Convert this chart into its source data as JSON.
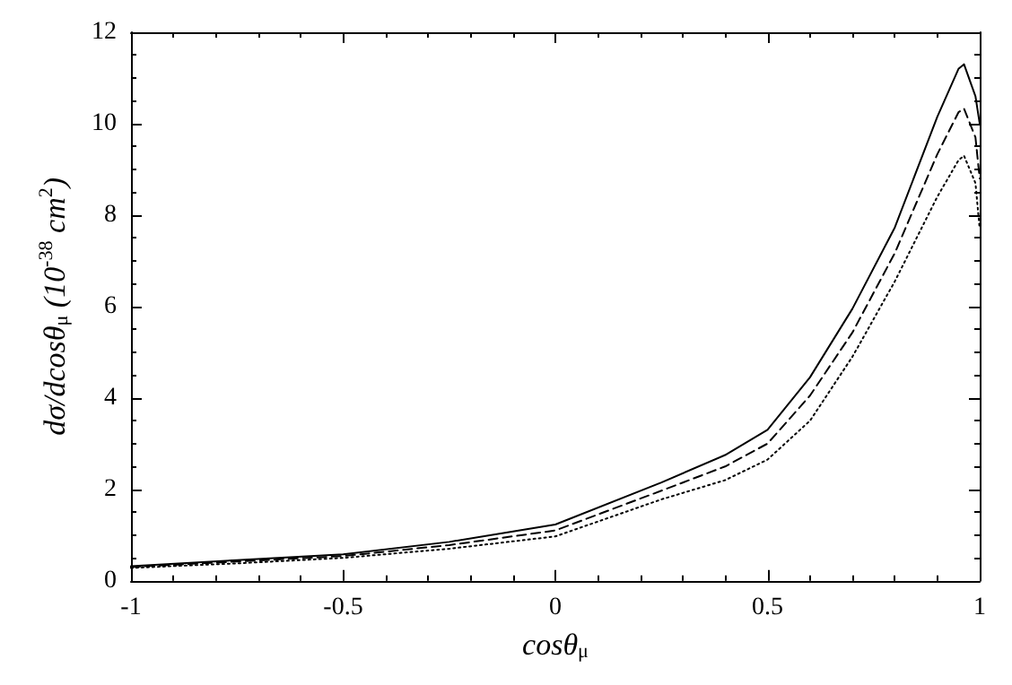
{
  "chart_data": {
    "type": "line",
    "xlabel": "cosθ$_{μ}$",
    "ylabel": "dσ/dcosθ$_{μ}$ (10$^{-38}$ cm$^{2}$)",
    "x": [
      -1,
      -0.75,
      -0.5,
      -0.25,
      0,
      0.25,
      0.4,
      0.5,
      0.6,
      0.7,
      0.8,
      0.9,
      0.95,
      0.963,
      0.99,
      1
    ],
    "series": [
      {
        "color": "#000000",
        "line_style": "solid",
        "values": [
          0.32,
          0.45,
          0.58,
          0.85,
          1.23,
          2.15,
          2.75,
          3.3,
          4.45,
          5.95,
          7.73,
          10.15,
          11.2,
          11.3,
          10.6,
          10.0
        ]
      },
      {
        "color": "#000000",
        "line_style": "dashed",
        "values": [
          0.3,
          0.42,
          0.54,
          0.78,
          1.1,
          1.97,
          2.5,
          3.0,
          4.05,
          5.43,
          7.17,
          9.33,
          10.25,
          10.33,
          9.7,
          8.8
        ]
      },
      {
        "color": "#000000",
        "line_style": "dotted",
        "values": [
          0.28,
          0.38,
          0.5,
          0.7,
          0.97,
          1.78,
          2.2,
          2.65,
          3.5,
          4.9,
          6.55,
          8.4,
          9.2,
          9.3,
          8.7,
          7.7
        ]
      }
    ],
    "xlim": [
      -1,
      1
    ],
    "xticks": [
      -1,
      -0.5,
      0,
      0.5,
      1
    ],
    "ylim": [
      0,
      12
    ],
    "yticks": [
      0,
      2,
      4,
      6,
      8,
      10,
      12
    ],
    "grid": false,
    "marker": "none"
  }
}
